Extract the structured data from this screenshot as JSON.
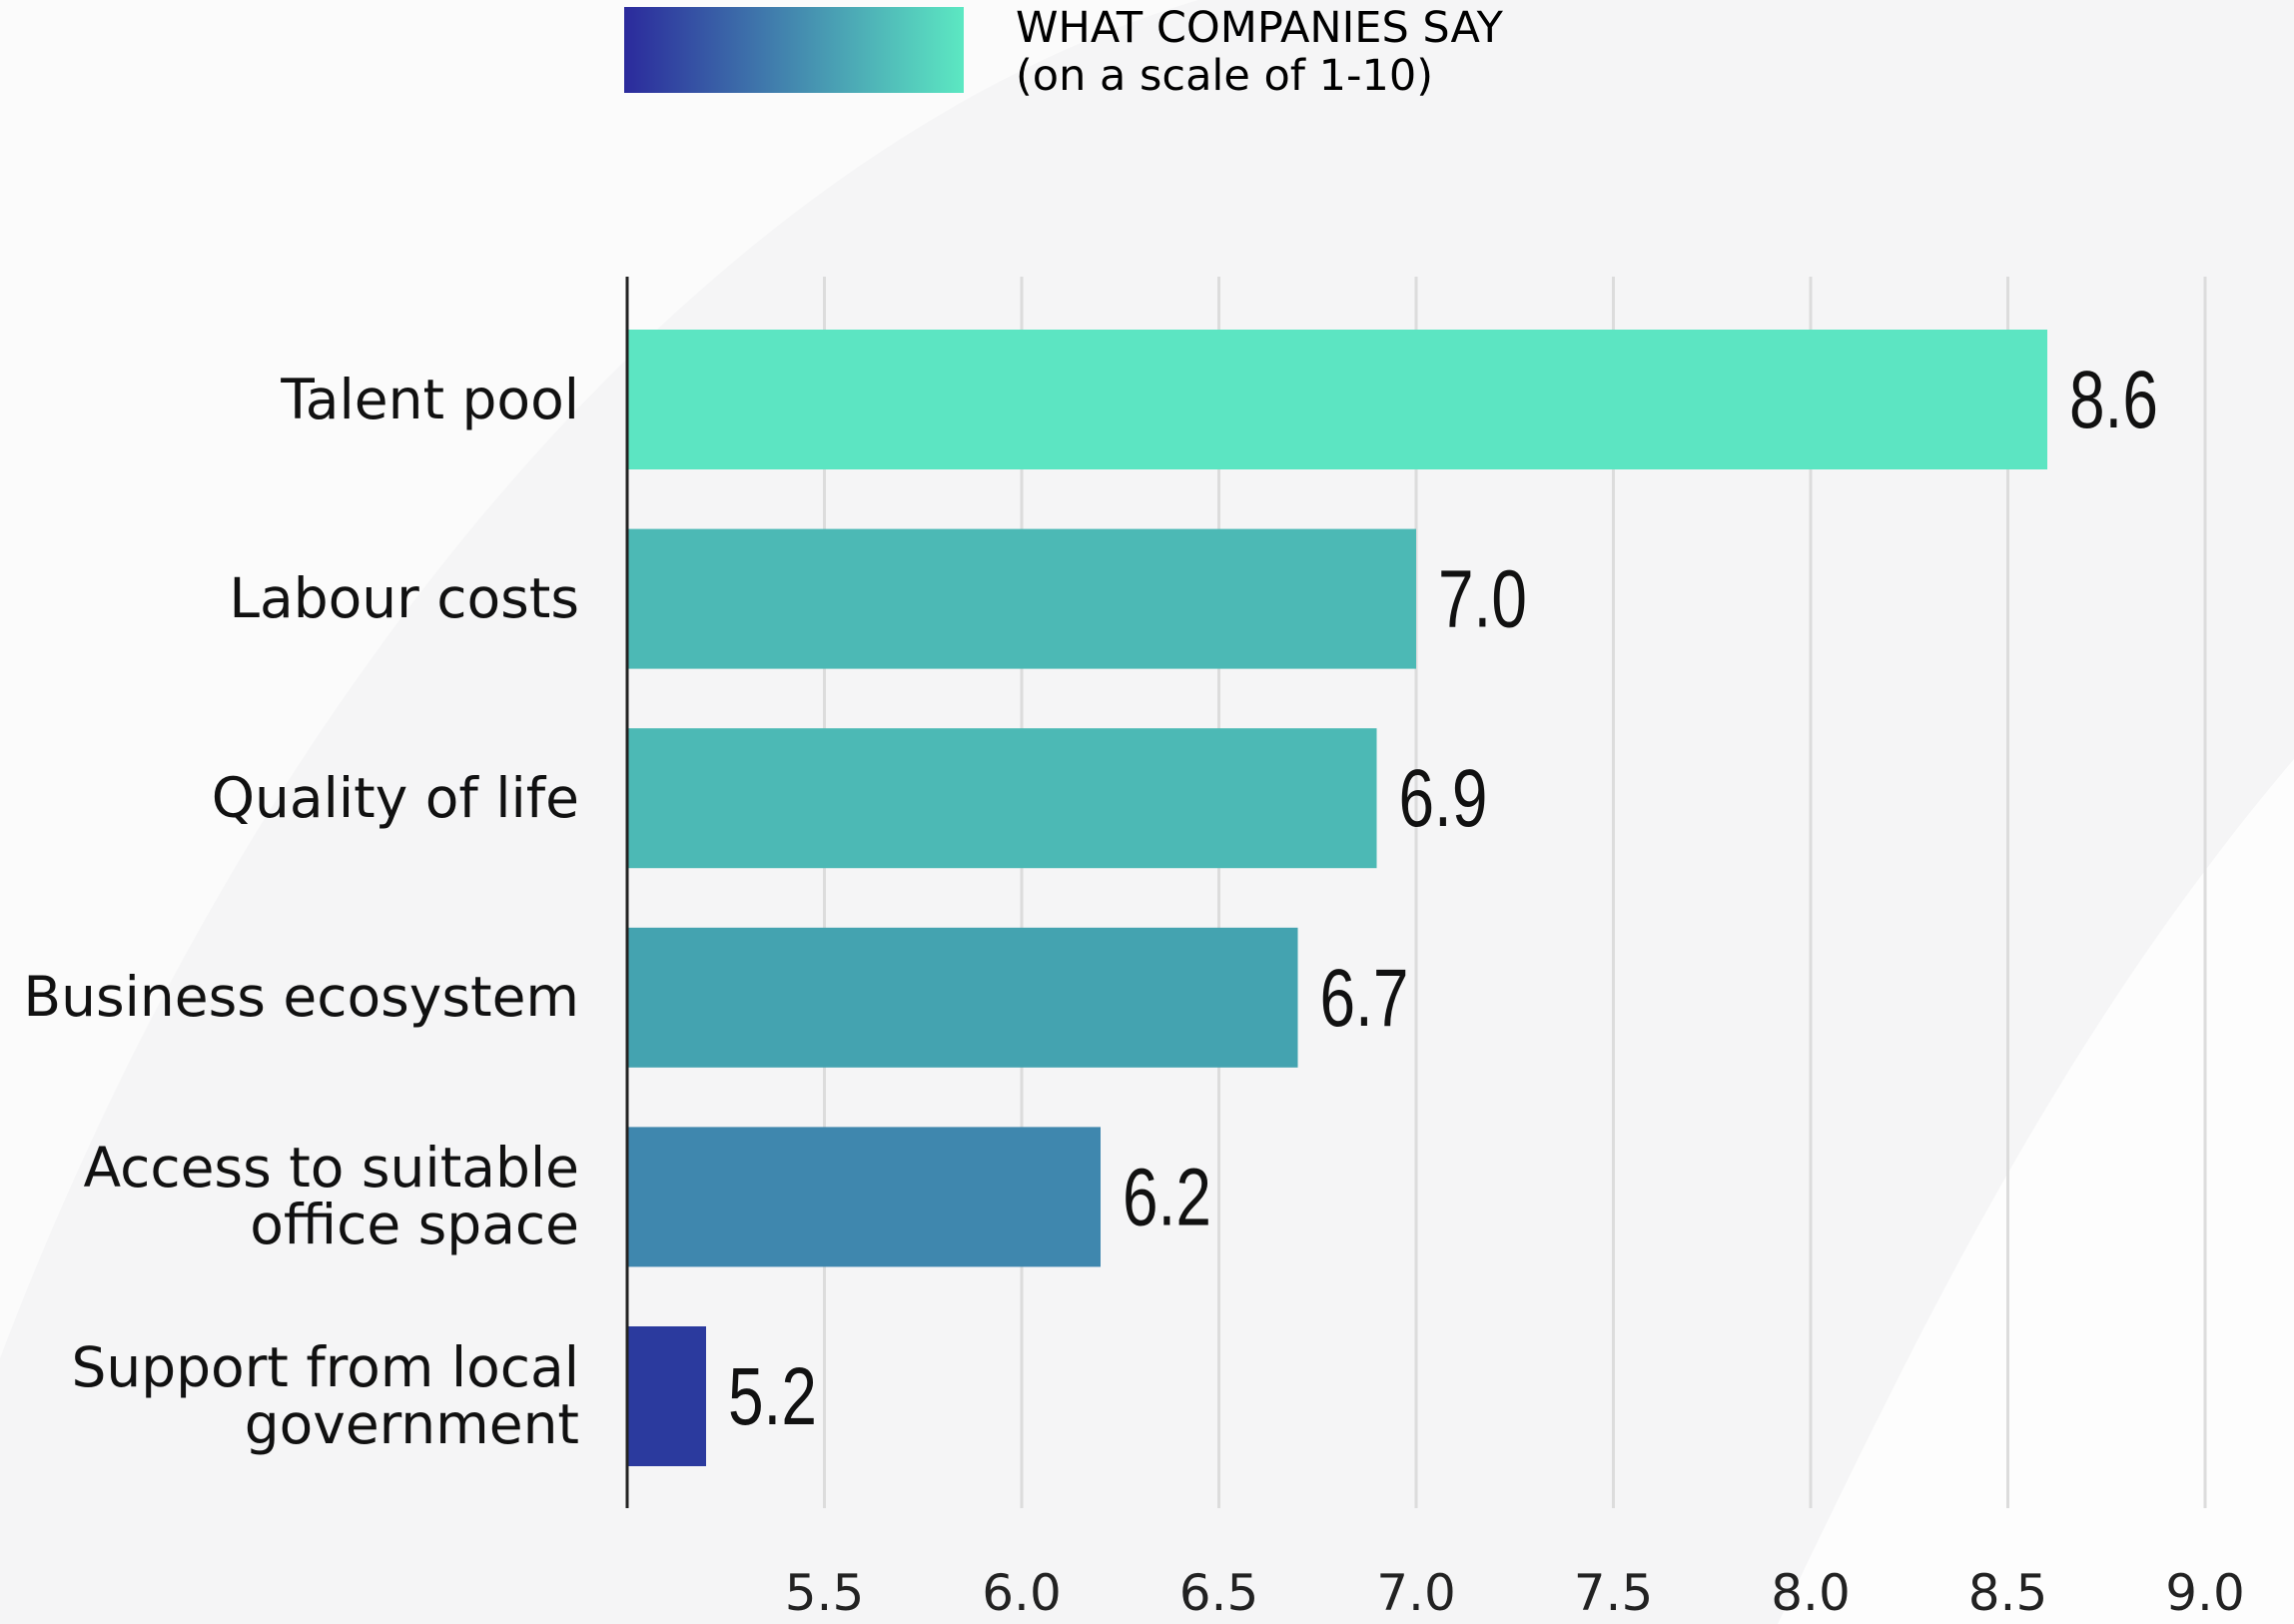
{
  "legend": {
    "line1": "WHAT COMPANIES SAY",
    "line2": "(on a scale of 1-10)",
    "gradient": [
      "#2b2a9c",
      "#5ce8c2"
    ]
  },
  "chart_data": {
    "type": "bar",
    "orientation": "horizontal",
    "title": "",
    "xlabel": "",
    "ylabel": "",
    "categories": [
      [
        "Talent pool"
      ],
      [
        "Labour costs"
      ],
      [
        "Quality of life"
      ],
      [
        "Business ecosystem"
      ],
      [
        "Access to suitable",
        "office space"
      ],
      [
        "Support from local",
        "government"
      ]
    ],
    "values": [
      8.6,
      7.0,
      6.9,
      6.7,
      6.2,
      5.2
    ],
    "value_labels": [
      "8.6",
      "7.0",
      "6.9",
      "6.7",
      "6.2",
      "5.2"
    ],
    "bar_colors": [
      "#5ce5c2",
      "#4cb9b5",
      "#4cb9b5",
      "#44a3b0",
      "#3f87ae",
      "#2b3a9e"
    ],
    "xlim": [
      5.0,
      9.0
    ],
    "xticks": [
      5.5,
      6.0,
      6.5,
      7.0,
      7.5,
      8.0,
      8.5,
      9.0
    ],
    "xtick_labels": [
      "5.5",
      "6.0",
      "6.5",
      "7.0",
      "7.5",
      "8.0",
      "8.5",
      "9.0"
    ],
    "grid": true,
    "legend_position": "top"
  }
}
